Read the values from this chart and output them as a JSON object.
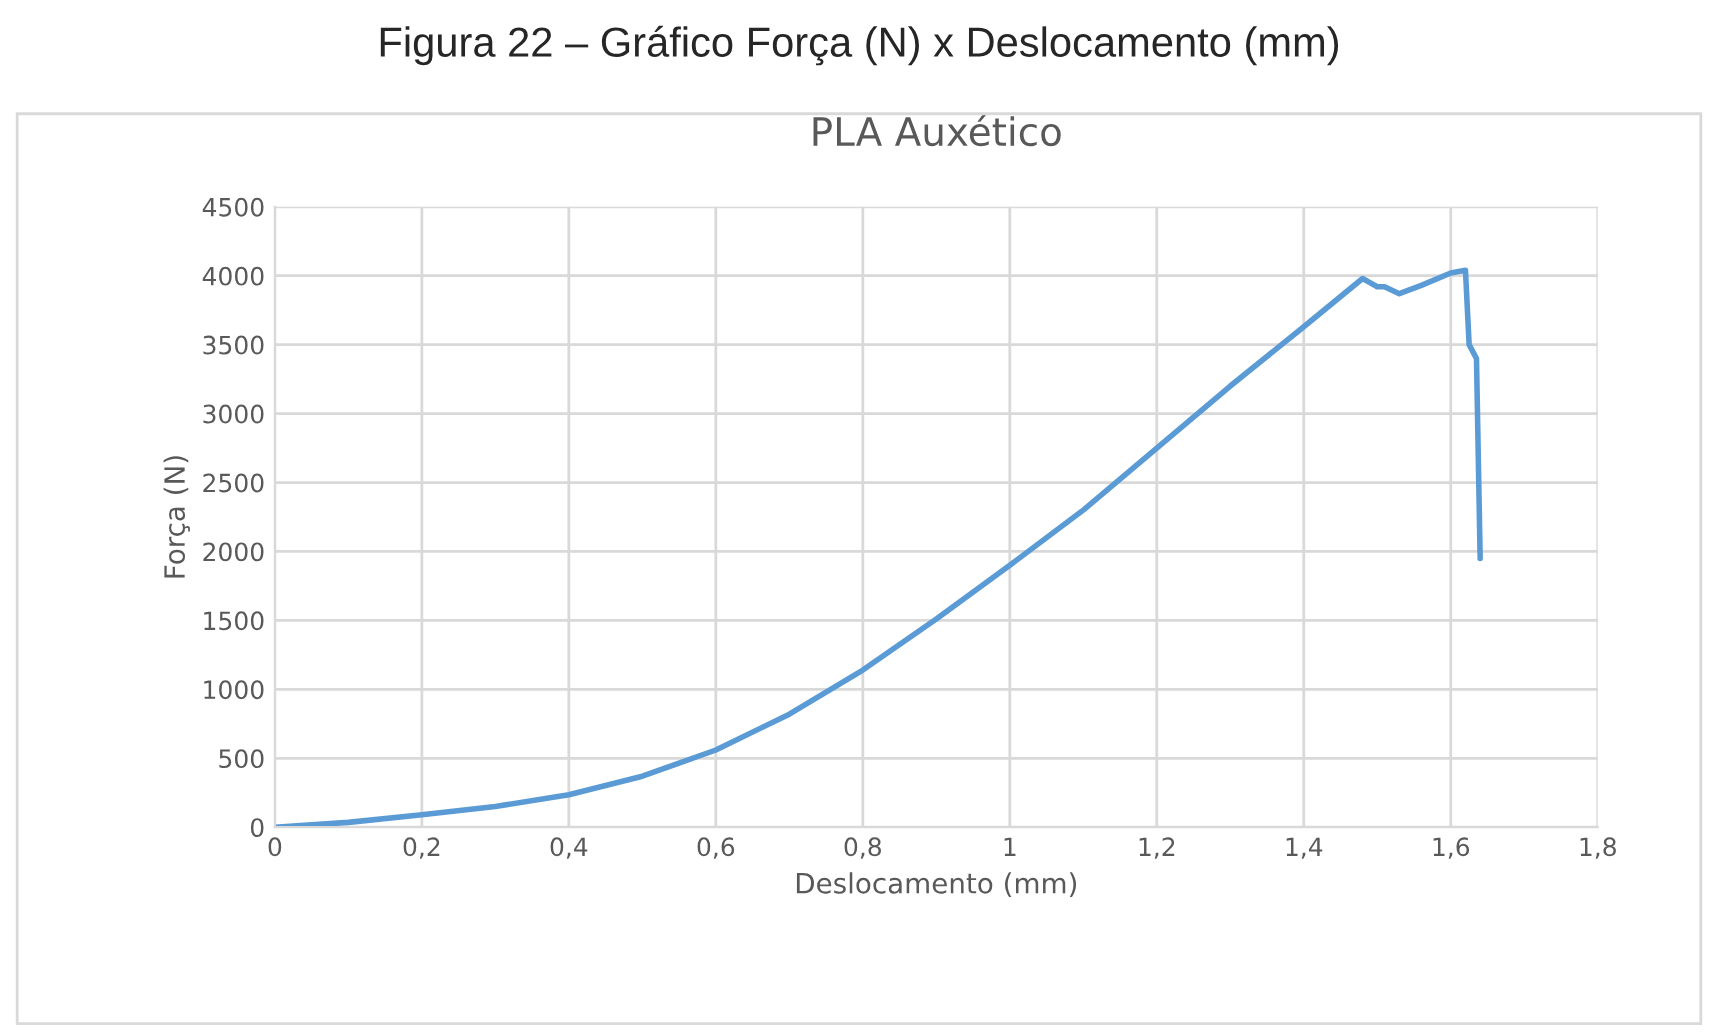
{
  "chart_data": {
    "type": "line",
    "title": "PLA Auxético",
    "xlabel": "Deslocamento (mm)",
    "ylabel": "Força (N)",
    "annotations": [
      "Figura 22 – Gráfico Força (N) x Deslocamento (mm)"
    ],
    "x": [
      0,
      0.1,
      0.2,
      0.3,
      0.4,
      0.5,
      0.6,
      0.7,
      0.8,
      0.9,
      1.0,
      1.1,
      1.2,
      1.3,
      1.4,
      1.48,
      1.49,
      1.5,
      1.51,
      1.53,
      1.56,
      1.6,
      1.62,
      1.625,
      1.635,
      1.64
    ],
    "series": [
      {
        "color": "#5b9bd5",
        "values": [
          0,
          35,
          90,
          150,
          235,
          370,
          560,
          820,
          1140,
          1510,
          1900,
          2300,
          2750,
          3200,
          3630,
          3980,
          3950,
          3920,
          3920,
          3870,
          3930,
          4020,
          4040,
          3500,
          3400,
          1950
        ]
      }
    ],
    "xlim": [
      0,
      1.8
    ],
    "ylim": [
      0,
      4500
    ],
    "xticks": [
      0,
      {
        "value": 0.2,
        "label": "0,2"
      },
      {
        "value": 0.4,
        "label": "0,4"
      },
      {
        "value": 0.6,
        "label": "0,6"
      },
      {
        "value": 0.8,
        "label": "0,8"
      },
      1,
      {
        "value": 1.2,
        "label": "1,2"
      },
      {
        "value": 1.4,
        "label": "1,4"
      },
      {
        "value": 1.6,
        "label": "1,6"
      },
      {
        "value": 1.8,
        "label": "1,8"
      }
    ],
    "yticks": [
      0,
      500,
      1000,
      1500,
      2000,
      2500,
      3000,
      3500,
      4000,
      4500
    ],
    "grid": true,
    "marker": "none",
    "line_style": "solid",
    "legend": false
  }
}
